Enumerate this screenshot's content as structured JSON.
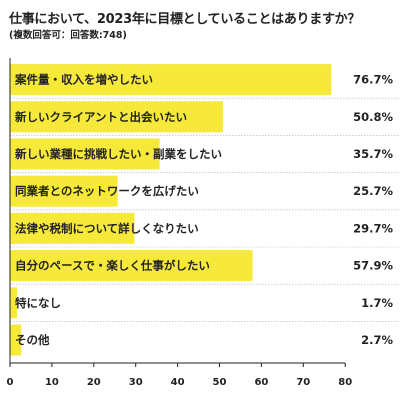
{
  "header": {
    "title": "仕事において、2023年に目標としていることはありますか？",
    "subtitle": "(複数回答可：回答数:748)"
  },
  "colors": {
    "bar": "#f7e93a",
    "axis": "#222222",
    "divider": "#b0b0b0"
  },
  "chart_data": {
    "type": "bar",
    "orientation": "horizontal",
    "title": "仕事において、2023年に目標としていることはありますか？",
    "subtitle": "(複数回答可：回答数:748)",
    "categories": [
      "案件量・収入を増やしたい",
      "新しいクライアントと出会いたい",
      "新しい業種に挑戦したい・副業をしたい",
      "同業者とのネットワークを広げたい",
      "法律や税制について詳しくなりたい",
      "自分のペースで・楽しく仕事がしたい",
      "特になし",
      "その他"
    ],
    "values": [
      76.7,
      50.8,
      35.7,
      25.7,
      29.7,
      57.9,
      1.7,
      2.7
    ],
    "value_labels": [
      "76.7%",
      "50.8%",
      "35.7%",
      "25.7%",
      "29.7%",
      "57.9%",
      "1.7%",
      "2.7%"
    ],
    "xlim": [
      0,
      80
    ],
    "xticks": [
      0,
      10,
      20,
      30,
      40,
      50,
      60,
      70,
      80
    ],
    "xtick_labels": [
      "0",
      "10",
      "20",
      "30",
      "40",
      "50",
      "60",
      "70",
      "80"
    ],
    "xlabel": "",
    "ylabel": "",
    "grid": false,
    "legend": "none"
  }
}
